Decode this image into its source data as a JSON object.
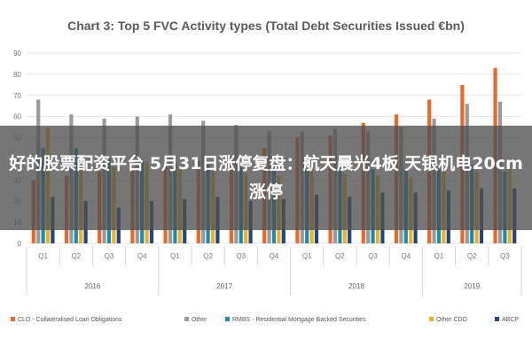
{
  "colors": {
    "background": "#ffffff",
    "grid": "#e4e4e4",
    "axis_text": "#777777",
    "caption_band": "#505050",
    "caption_text": "#ffffff"
  },
  "overlay": {
    "caption": "好的股票配资平台 5月31日涨停复盘：航天晨光4板 天银机电20cm涨停"
  },
  "chart_data": {
    "type": "bar",
    "title": "Chart 3: Top 5 FVC Activity types (Total Debt Securities Issued €bn)",
    "xlabel": "",
    "ylabel": "",
    "ylim": [
      0,
      90
    ],
    "yticks": [
      0,
      10,
      20,
      30,
      40,
      50,
      60,
      70,
      80,
      90
    ],
    "grid": true,
    "legend_position": "bottom",
    "categories": [
      "Q1",
      "Q2",
      "Q3",
      "Q4",
      "Q1",
      "Q2",
      "Q3",
      "Q4",
      "Q1",
      "Q2",
      "Q3",
      "Q4",
      "Q1",
      "Q2",
      "Q3"
    ],
    "year_groups": [
      {
        "label": "2016",
        "count": 4
      },
      {
        "label": "2017",
        "count": 4
      },
      {
        "label": "2018",
        "count": 4
      },
      {
        "label": "2019",
        "count": 3
      }
    ],
    "series": [
      {
        "name": "CLO - Collateralised Loan Obligations",
        "color": "#e8692a",
        "values": [
          30,
          32,
          34,
          35,
          37,
          39,
          41,
          45,
          50,
          51,
          57,
          61,
          68,
          75,
          83
        ]
      },
      {
        "name": "Other",
        "color": "#9a9a9a",
        "values": [
          68,
          61,
          59,
          60,
          61,
          58,
          56,
          53,
          53,
          54,
          53,
          55,
          59,
          66,
          67
        ]
      },
      {
        "name": "RMBS - Residential Mortgage Backed Securities",
        "color": "#1f8ab0",
        "values": [
          45,
          45,
          40,
          39,
          38,
          37,
          37,
          36,
          35,
          36,
          35,
          35,
          35,
          37,
          34
        ]
      },
      {
        "name": "Other CDO",
        "color": "#e9b227",
        "values": [
          55,
          37,
          36,
          38,
          36,
          34,
          33,
          32,
          34,
          33,
          32,
          31,
          34,
          34,
          35
        ]
      },
      {
        "name": "ABCP",
        "color": "#25457c",
        "values": [
          22,
          20,
          17,
          20,
          21,
          22,
          20,
          21,
          23,
          22,
          24,
          24,
          25,
          26,
          26
        ]
      }
    ]
  }
}
